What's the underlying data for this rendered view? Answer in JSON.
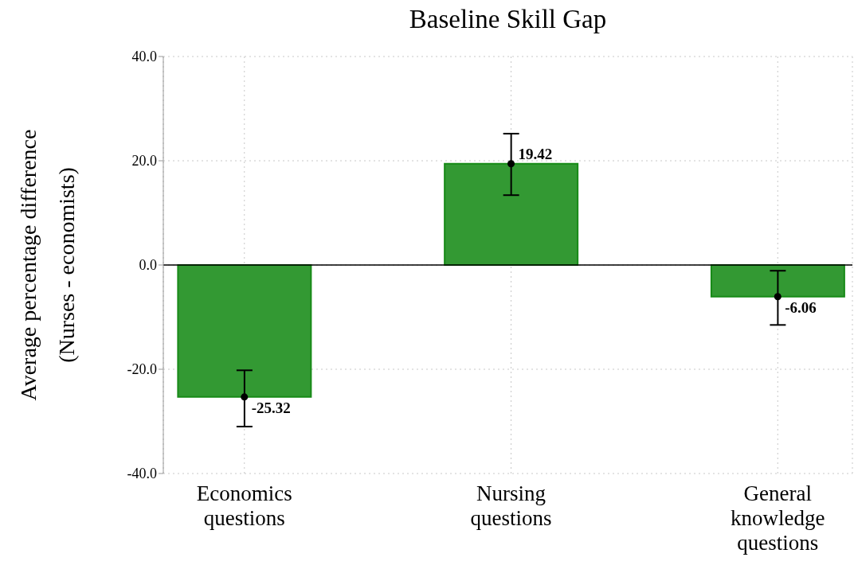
{
  "chart_data": {
    "type": "bar",
    "title": "Baseline Skill Gap",
    "ylabel": "Average percentage difference\n(Nurses - economists)",
    "categories": [
      "Economics questions",
      "Nursing questions",
      "General knowledge questions"
    ],
    "series": [
      {
        "color": "#339933",
        "values": [
          -25.32,
          19.42,
          -6.06
        ],
        "errors": [
          [
            -31.0,
            -20.2
          ],
          [
            13.4,
            25.2
          ],
          [
            -11.5,
            -1.1
          ]
        ]
      },
      {
        "type": "scatter",
        "color": "#000000",
        "x": [
          "Economics questions",
          "Nursing questions",
          "General knowledge questions"
        ],
        "values": [
          -25.32,
          19.42,
          -6.06
        ],
        "value_labels": [
          "-25.32",
          "19.42",
          "-6.06"
        ]
      }
    ],
    "ylim": [
      -40,
      40
    ],
    "yticks": [
      {
        "value": -40,
        "label": "-40.0"
      },
      {
        "value": -20,
        "label": "-20.0"
      },
      {
        "value": 0,
        "label": "0.0"
      },
      {
        "value": 20,
        "label": "20.0"
      },
      {
        "value": 40,
        "label": "40.0"
      }
    ],
    "ref_lines": [
      {
        "axis": "y",
        "value": 0,
        "label": null,
        "color": "#000000"
      }
    ],
    "grid": true,
    "marker": "circle"
  }
}
